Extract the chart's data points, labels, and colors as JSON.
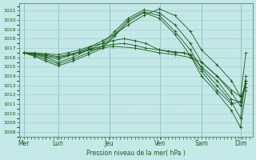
{
  "xlabel": "Pression niveau de la mer( hPa )",
  "bg_color": "#c5e8e8",
  "grid_color_major": "#a0c8c8",
  "grid_color_minor": "#b8dede",
  "line_color": "#1a5c1a",
  "ylim": [
    1007.5,
    1021.8
  ],
  "ytick_min": 1008,
  "ytick_max": 1021,
  "days": [
    "Mer",
    "Lun",
    "Jeu",
    "Ven",
    "Sam",
    "Dim"
  ],
  "day_positions": [
    0.0,
    0.155,
    0.385,
    0.615,
    0.8,
    0.975
  ],
  "xlim": [
    -0.02,
    1.03
  ],
  "series": [
    {
      "x": [
        0.0,
        0.05,
        0.1,
        0.155,
        0.22,
        0.29,
        0.355,
        0.41,
        0.47,
        0.54,
        0.61,
        0.68,
        0.75,
        0.8,
        0.87,
        0.935,
        0.975,
        1.0
      ],
      "y": [
        1016.5,
        1016.4,
        1016.1,
        1015.8,
        1016.3,
        1017.0,
        1017.8,
        1018.5,
        1019.5,
        1020.5,
        1021.2,
        1020.5,
        1018.8,
        1016.8,
        1015.2,
        1013.5,
        1011.8,
        1016.5
      ]
    },
    {
      "x": [
        0.0,
        0.05,
        0.1,
        0.155,
        0.22,
        0.29,
        0.355,
        0.41,
        0.47,
        0.54,
        0.61,
        0.68,
        0.75,
        0.8,
        0.87,
        0.935,
        0.975,
        1.0
      ],
      "y": [
        1016.5,
        1016.3,
        1016.0,
        1015.5,
        1016.0,
        1016.8,
        1017.5,
        1018.8,
        1020.2,
        1021.1,
        1020.8,
        1019.5,
        1017.5,
        1015.5,
        1014.0,
        1012.2,
        1010.8,
        1013.2
      ]
    },
    {
      "x": [
        0.0,
        0.05,
        0.1,
        0.155,
        0.22,
        0.29,
        0.355,
        0.41,
        0.47,
        0.54,
        0.61,
        0.68,
        0.75,
        0.8,
        0.87,
        0.935,
        0.975,
        1.0
      ],
      "y": [
        1016.5,
        1016.2,
        1015.8,
        1015.3,
        1015.8,
        1016.5,
        1017.2,
        1018.5,
        1020.0,
        1020.9,
        1020.5,
        1018.8,
        1016.8,
        1014.8,
        1013.0,
        1011.2,
        1009.5,
        1014.0
      ]
    },
    {
      "x": [
        0.0,
        0.05,
        0.1,
        0.155,
        0.22,
        0.29,
        0.355,
        0.41,
        0.47,
        0.54,
        0.61,
        0.68,
        0.75,
        0.8,
        0.87,
        0.935,
        0.975,
        1.0
      ],
      "y": [
        1016.5,
        1016.1,
        1015.6,
        1015.1,
        1015.6,
        1016.3,
        1017.0,
        1018.3,
        1019.8,
        1020.8,
        1020.2,
        1018.5,
        1016.2,
        1014.0,
        1012.2,
        1010.3,
        1008.5,
        1012.5
      ]
    },
    {
      "x": [
        0.0,
        0.05,
        0.1,
        0.155,
        0.2,
        0.25,
        0.3,
        0.355,
        0.4,
        0.45,
        0.5,
        0.55,
        0.61,
        0.68,
        0.72,
        0.75,
        0.8,
        0.87,
        0.935,
        0.975,
        1.0
      ],
      "y": [
        1016.5,
        1016.5,
        1016.4,
        1016.3,
        1016.5,
        1016.8,
        1017.2,
        1017.5,
        1017.8,
        1018.0,
        1017.8,
        1017.5,
        1016.8,
        1016.5,
        1016.5,
        1016.3,
        1015.0,
        1013.5,
        1011.5,
        1011.2,
        1013.5
      ]
    },
    {
      "x": [
        0.0,
        0.05,
        0.1,
        0.155,
        0.2,
        0.25,
        0.3,
        0.355,
        0.4,
        0.5,
        0.61,
        0.68,
        0.75,
        0.8,
        0.87,
        0.935,
        0.975,
        1.0
      ],
      "y": [
        1016.5,
        1016.4,
        1016.2,
        1016.0,
        1016.2,
        1016.5,
        1016.8,
        1017.0,
        1017.2,
        1017.0,
        1016.5,
        1016.3,
        1016.0,
        1015.5,
        1014.0,
        1012.5,
        1011.8,
        1012.8
      ]
    },
    {
      "x": [
        0.0,
        0.05,
        0.1,
        0.155,
        0.2,
        0.25,
        0.3,
        0.355,
        0.4,
        0.45,
        0.5,
        0.55,
        0.61,
        0.65,
        0.68,
        0.72,
        0.75,
        0.8,
        0.87,
        0.935,
        0.975,
        1.0
      ],
      "y": [
        1016.5,
        1016.4,
        1016.3,
        1016.1,
        1016.3,
        1016.6,
        1016.9,
        1017.2,
        1017.4,
        1017.5,
        1017.3,
        1017.0,
        1016.8,
        1016.7,
        1016.6,
        1016.5,
        1016.2,
        1014.5,
        1012.5,
        1011.0,
        1011.3,
        1013.5
      ]
    }
  ]
}
